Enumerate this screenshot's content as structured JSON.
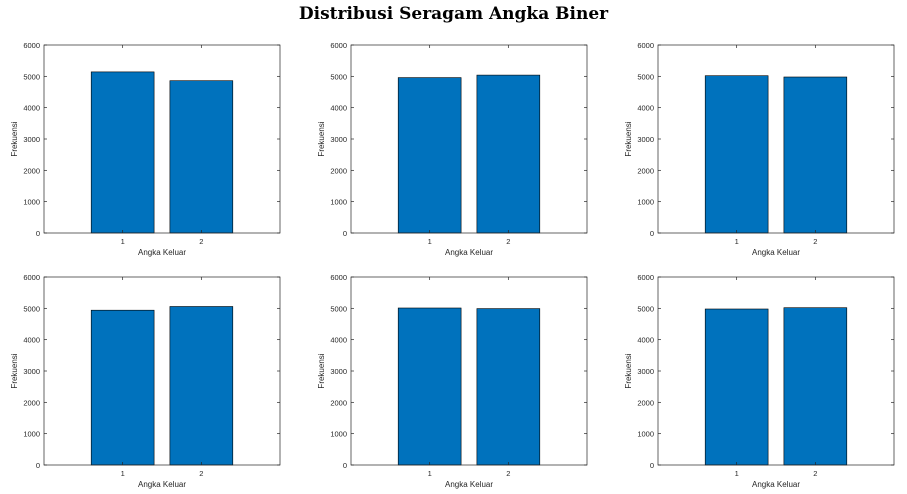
{
  "title": "Distribusi Seragam Angka Biner",
  "colors": {
    "bar": "#0072BD",
    "axis": "#262626"
  },
  "chart_data": [
    {
      "type": "bar",
      "categories": [
        "1",
        "2"
      ],
      "values": [
        5140,
        4860
      ],
      "xlabel": "Angka Keluar",
      "ylabel": "Frekuensi",
      "ylim": [
        0,
        6000
      ],
      "yticks": [
        "0",
        "1000",
        "2000",
        "3000",
        "4000",
        "5000",
        "6000"
      ],
      "grid": false
    },
    {
      "type": "bar",
      "categories": [
        "1",
        "2"
      ],
      "values": [
        4960,
        5040
      ],
      "xlabel": "Angka Keluar",
      "ylabel": "Frekuensi",
      "ylim": [
        0,
        6000
      ],
      "yticks": [
        "0",
        "1000",
        "2000",
        "3000",
        "4000",
        "5000",
        "6000"
      ],
      "grid": false
    },
    {
      "type": "bar",
      "categories": [
        "1",
        "2"
      ],
      "values": [
        5020,
        4980
      ],
      "xlabel": "Angka Keluar",
      "ylabel": "Frekuensi",
      "ylim": [
        0,
        6000
      ],
      "yticks": [
        "0",
        "1000",
        "2000",
        "3000",
        "4000",
        "5000",
        "6000"
      ],
      "grid": false
    },
    {
      "type": "bar",
      "categories": [
        "1",
        "2"
      ],
      "values": [
        4940,
        5060
      ],
      "xlabel": "Angka Keluar",
      "ylabel": "Frekuensi",
      "ylim": [
        0,
        6000
      ],
      "yticks": [
        "0",
        "1000",
        "2000",
        "3000",
        "4000",
        "5000",
        "6000"
      ],
      "grid": false
    },
    {
      "type": "bar",
      "categories": [
        "1",
        "2"
      ],
      "values": [
        5010,
        4990
      ],
      "xlabel": "Angka Keluar",
      "ylabel": "Frekuensi",
      "ylim": [
        0,
        6000
      ],
      "yticks": [
        "0",
        "1000",
        "2000",
        "3000",
        "4000",
        "5000",
        "6000"
      ],
      "grid": false
    },
    {
      "type": "bar",
      "categories": [
        "1",
        "2"
      ],
      "values": [
        4980,
        5020
      ],
      "xlabel": "Angka Keluar",
      "ylabel": "Frekuensi",
      "ylim": [
        0,
        6000
      ],
      "yticks": [
        "0",
        "1000",
        "2000",
        "3000",
        "4000",
        "5000",
        "6000"
      ],
      "grid": false
    }
  ]
}
